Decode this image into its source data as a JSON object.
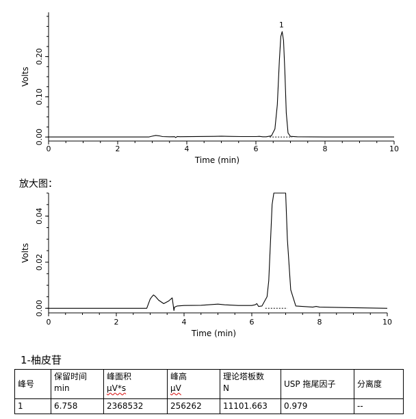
{
  "chart_data": [
    {
      "type": "line",
      "xlabel": "Time (min)",
      "ylabel": "Volts",
      "xlim": [
        0,
        10
      ],
      "ylim": [
        -0.01,
        0.31
      ],
      "xticks": [
        0,
        2,
        4,
        6,
        8,
        10
      ],
      "yticks": [
        0.0,
        0.1,
        0.2
      ],
      "ytick_labels": [
        "0.00",
        "0.10",
        "0.20"
      ],
      "peak_annotations": [
        {
          "label": "1",
          "x": 6.76,
          "y": 0.262
        }
      ],
      "series": [
        {
          "x": [
            0.0,
            2.9,
            3.0,
            3.1,
            3.2,
            3.3,
            3.5,
            3.65,
            3.68,
            3.72,
            3.8,
            4.3,
            4.8,
            5.0,
            5.2,
            5.6,
            6.0,
            6.1,
            6.2,
            6.3,
            6.45,
            6.55,
            6.62,
            6.68,
            6.72,
            6.76,
            6.8,
            6.84,
            6.88,
            6.93,
            7.0,
            7.2,
            8.0,
            10.0
          ],
          "y": [
            0.0,
            0.0,
            0.002,
            0.004,
            0.003,
            0.001,
            0.0005,
            0.0008,
            -0.0015,
            0.0012,
            0.0008,
            0.0012,
            0.0015,
            0.002,
            0.0015,
            0.001,
            0.001,
            0.0015,
            0.0005,
            0.0005,
            0.003,
            0.02,
            0.08,
            0.19,
            0.25,
            0.262,
            0.24,
            0.16,
            0.06,
            0.01,
            0.0015,
            0.0005,
            0.0,
            0.0
          ]
        }
      ]
    },
    {
      "type": "line",
      "xlabel": "Time (min)",
      "ylabel": "Volts",
      "xlim": [
        0,
        10
      ],
      "ylim": [
        -0.002,
        0.05
      ],
      "xticks": [
        0,
        2,
        4,
        6,
        8,
        10
      ],
      "yticks": [
        0.0,
        0.02,
        0.04
      ],
      "ytick_labels": [
        "0.00",
        "0.02",
        "0.04"
      ],
      "series": [
        {
          "x": [
            0.0,
            2.9,
            3.0,
            3.05,
            3.1,
            3.15,
            3.25,
            3.4,
            3.55,
            3.65,
            3.7,
            3.72,
            3.8,
            4.0,
            4.5,
            5.0,
            5.2,
            5.6,
            6.0,
            6.1,
            6.15,
            6.2,
            6.3,
            6.45,
            6.5,
            6.55,
            6.6,
            6.65,
            7.0,
            7.05,
            7.15,
            7.3,
            7.8,
            7.9,
            8.0,
            10.0
          ],
          "y": [
            0.0,
            0.0,
            0.004,
            0.005,
            0.0058,
            0.0052,
            0.0035,
            0.002,
            0.0032,
            0.0045,
            -0.001,
            0.0005,
            0.001,
            0.0012,
            0.0013,
            0.0018,
            0.0015,
            0.0012,
            0.0012,
            0.0015,
            0.002,
            0.0008,
            0.001,
            0.005,
            0.012,
            0.028,
            0.045,
            0.05,
            0.05,
            0.03,
            0.008,
            0.001,
            0.0005,
            0.0008,
            0.0005,
            0.0
          ]
        }
      ]
    }
  ],
  "section_label": "放大图：",
  "compound_label": "1-柚皮苷",
  "table": {
    "headers": [
      {
        "line1": "峰号",
        "line2": ""
      },
      {
        "line1": "保留时间",
        "line2": "min"
      },
      {
        "line1": "峰面积",
        "line2": "µV*s"
      },
      {
        "line1": "峰高",
        "line2": "µV"
      },
      {
        "line1": "理论塔板数",
        "line2": "N"
      },
      {
        "line1": "USP 拖尾因子",
        "line2": ""
      },
      {
        "line1": "分离度",
        "line2": ""
      }
    ],
    "rows": [
      [
        "1",
        "6.758",
        "2368532",
        "256262",
        "11101.663",
        "0.979",
        "--"
      ]
    ]
  },
  "colors": {
    "line": "#000000",
    "baseline_dash": "#000000",
    "background": "#ffffff"
  }
}
